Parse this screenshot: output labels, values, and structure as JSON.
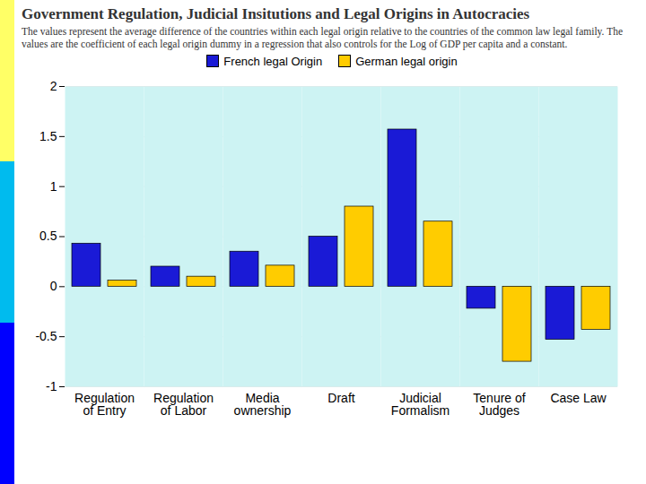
{
  "chart_data": {
    "type": "bar",
    "title": "Government Regulation, Judicial Insitutions and Legal Origins in Autocracies",
    "subtitle": "The values represent the average difference of the countries within each legal origin relative to the countries of the common law legal family.  The values are the coefficient of each legal origin dummy in a regression that also controls for the Log of GDP per capita and a constant.",
    "categories": [
      "Regulation of Entry",
      "Regulation of Labor",
      "Media ownership",
      "Draft",
      "Judicial Formalism",
      "Tenure of Judges",
      "Case Law"
    ],
    "series": [
      {
        "name": "French legal Origin",
        "color": "#1a1ad6",
        "values": [
          0.43,
          0.2,
          0.35,
          0.5,
          1.57,
          -0.22,
          -0.53
        ]
      },
      {
        "name": "German legal origin",
        "color": "#ffcc00",
        "values": [
          0.06,
          0.1,
          0.21,
          0.8,
          0.65,
          -0.75,
          -0.43
        ]
      }
    ],
    "ylim": [
      -1,
      2
    ],
    "yticks": [
      -1,
      -0.5,
      0,
      0.5,
      1,
      1.5,
      2
    ],
    "grid": true,
    "legend": "top"
  }
}
